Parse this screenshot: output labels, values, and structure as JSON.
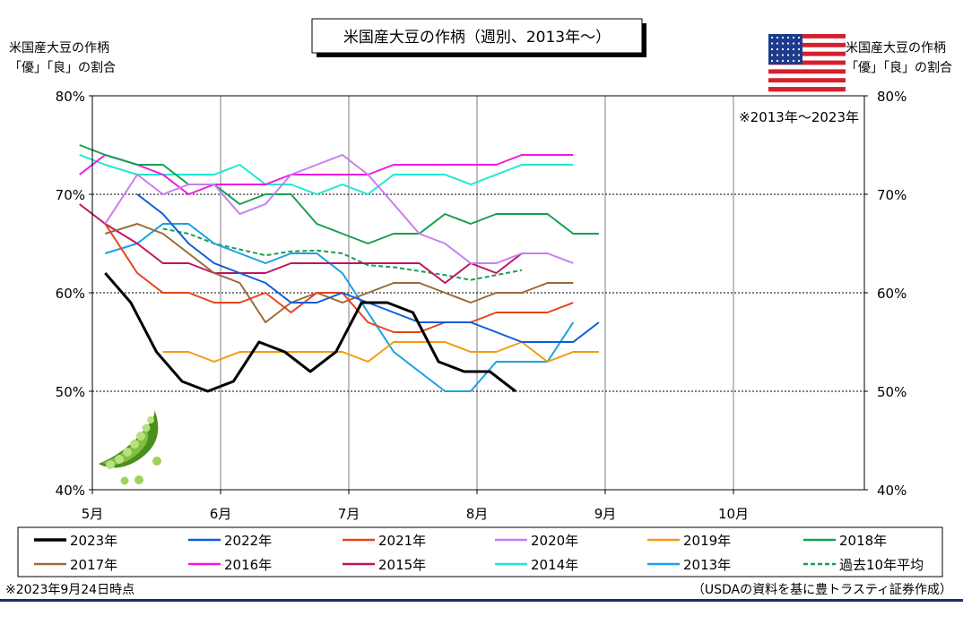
{
  "chart_data": {
    "type": "line",
    "title": "米国産大豆の作柄（週別、2013年～）",
    "ylabel_left": [
      "米国産大豆の作柄",
      "「優」「良」の割合"
    ],
    "ylabel_right": [
      "米国産大豆の作柄",
      "「優」「良」の割合"
    ],
    "range_note": "※2013年～2023年",
    "footnote": "※2023年9月24日時点",
    "source": "（USDAの資料を基に豊トラスティ証券作成）",
    "ylim": [
      40,
      80
    ],
    "y_ticks": [
      40,
      50,
      60,
      70,
      80
    ],
    "y_tick_labels": [
      "40%",
      "50%",
      "60%",
      "70%",
      "80%"
    ],
    "xlim": [
      0,
      6.29
    ],
    "x_ticks": [
      0,
      1,
      2,
      3,
      4,
      5
    ],
    "x_tick_labels": [
      "5月",
      "6月",
      "7月",
      "8月",
      "9月",
      "10月"
    ],
    "grid": true,
    "legend_position": "bottom",
    "series": [
      {
        "name": "2023年",
        "color": "#000000",
        "width": 3,
        "dash": false,
        "x": [
          0.1,
          0.3,
          0.5,
          0.7,
          0.9,
          1.1,
          1.3,
          1.5,
          1.7,
          1.9,
          2.1,
          2.3,
          2.5,
          2.7,
          2.9,
          3.1,
          3.3,
          3.5,
          3.7,
          3.9
        ],
        "values": [
          62,
          59,
          54,
          51,
          50,
          51,
          55,
          54,
          52,
          54,
          59,
          59,
          58,
          53,
          52,
          52,
          50,
          null,
          null,
          null
        ]
      },
      {
        "name": "2022年",
        "color": "#0b5ed7",
        "width": 2,
        "dash": false,
        "x": [
          0.35,
          0.55,
          0.75,
          0.95,
          1.15,
          1.35,
          1.55,
          1.75,
          1.95,
          2.15,
          2.35,
          2.55,
          2.75,
          2.95,
          3.15,
          3.35,
          3.55,
          3.75,
          3.95
        ],
        "values": [
          70,
          68,
          65,
          63,
          62,
          61,
          59,
          59,
          60,
          59,
          58,
          57,
          57,
          57,
          56,
          55,
          55,
          55,
          57
        ]
      },
      {
        "name": "2021年",
        "color": "#e8431a",
        "width": 2,
        "dash": false,
        "x": [
          0.1,
          0.35,
          0.55,
          0.75,
          0.95,
          1.15,
          1.35,
          1.55,
          1.75,
          1.95,
          2.15,
          2.35,
          2.55,
          2.75,
          2.95,
          3.15,
          3.35,
          3.55,
          3.75,
          3.95
        ],
        "values": [
          67,
          62,
          60,
          60,
          59,
          59,
          60,
          58,
          60,
          60,
          57,
          56,
          56,
          57,
          57,
          58,
          58,
          58,
          59,
          null
        ]
      },
      {
        "name": "2020年",
        "color": "#c77ef0",
        "width": 2,
        "dash": false,
        "x": [
          0.1,
          0.35,
          0.55,
          0.75,
          0.95,
          1.15,
          1.35,
          1.55,
          1.75,
          1.95,
          2.15,
          2.35,
          2.55,
          2.75,
          2.95,
          3.15,
          3.35,
          3.55,
          3.75
        ],
        "values": [
          67,
          72,
          70,
          71,
          71,
          68,
          69,
          72,
          73,
          74,
          72,
          69,
          66,
          65,
          63,
          63,
          64,
          64,
          63
        ]
      },
      {
        "name": "2019年",
        "color": "#f59a0c",
        "width": 2,
        "dash": false,
        "x": [
          0.55,
          0.75,
          0.95,
          1.15,
          1.35,
          1.55,
          1.75,
          1.95,
          2.15,
          2.35,
          2.55,
          2.75,
          2.95,
          3.15,
          3.35,
          3.55,
          3.75,
          3.95
        ],
        "values": [
          54,
          54,
          53,
          54,
          54,
          54,
          54,
          54,
          53,
          55,
          55,
          55,
          54,
          54,
          55,
          53,
          54,
          54
        ]
      },
      {
        "name": "2018年",
        "color": "#17a050",
        "width": 2,
        "dash": false,
        "x": [
          -0.1,
          0.1,
          0.35,
          0.55,
          0.75,
          0.95,
          1.15,
          1.35,
          1.55,
          1.75,
          1.95,
          2.15,
          2.35,
          2.55,
          2.75,
          2.95,
          3.15,
          3.35,
          3.55,
          3.75,
          3.95
        ],
        "values": [
          75,
          74,
          73,
          73,
          71,
          71,
          69,
          70,
          70,
          67,
          66,
          65,
          66,
          66,
          68,
          67,
          68,
          68,
          68,
          66,
          66
        ]
      },
      {
        "name": "2017年",
        "color": "#9a6a3a",
        "width": 2,
        "dash": false,
        "x": [
          0.1,
          0.35,
          0.55,
          0.75,
          0.95,
          1.15,
          1.35,
          1.55,
          1.75,
          1.95,
          2.15,
          2.35,
          2.55,
          2.75,
          2.95,
          3.15,
          3.35,
          3.55,
          3.75
        ],
        "values": [
          66,
          67,
          66,
          64,
          62,
          61,
          57,
          59,
          60,
          59,
          60,
          61,
          61,
          60,
          59,
          60,
          60,
          61,
          61
        ]
      },
      {
        "name": "2016年",
        "color": "#f018e0",
        "width": 2,
        "dash": false,
        "x": [
          -0.1,
          0.1,
          0.35,
          0.55,
          0.75,
          0.95,
          1.15,
          1.35,
          1.55,
          1.75,
          1.95,
          2.15,
          2.35,
          2.55,
          2.75,
          2.95,
          3.15,
          3.35,
          3.55,
          3.75
        ],
        "values": [
          72,
          74,
          73,
          72,
          70,
          71,
          71,
          71,
          72,
          72,
          72,
          72,
          73,
          73,
          73,
          73,
          73,
          74,
          74,
          74
        ]
      },
      {
        "name": "2015年",
        "color": "#c0135f",
        "width": 2,
        "dash": false,
        "x": [
          -0.1,
          0.1,
          0.35,
          0.55,
          0.75,
          0.95,
          1.15,
          1.35,
          1.55,
          1.75,
          1.95,
          2.15,
          2.35,
          2.55,
          2.75,
          2.95,
          3.15,
          3.35,
          3.55
        ],
        "values": [
          69,
          67,
          65,
          63,
          63,
          62,
          62,
          62,
          63,
          63,
          63,
          63,
          63,
          63,
          61,
          63,
          62,
          64,
          64
        ]
      },
      {
        "name": "2014年",
        "color": "#1ee8d2",
        "width": 2,
        "dash": false,
        "x": [
          -0.1,
          0.1,
          0.35,
          0.55,
          0.75,
          0.95,
          1.15,
          1.35,
          1.55,
          1.75,
          1.95,
          2.15,
          2.35,
          2.55,
          2.75,
          2.95,
          3.15,
          3.35,
          3.55,
          3.75
        ],
        "values": [
          74,
          73,
          72,
          72,
          72,
          72,
          73,
          71,
          71,
          70,
          71,
          70,
          72,
          72,
          72,
          71,
          72,
          73,
          73,
          73
        ]
      },
      {
        "name": "2013年",
        "color": "#1aa0e6",
        "width": 2,
        "dash": false,
        "x": [
          0.1,
          0.35,
          0.55,
          0.75,
          0.95,
          1.15,
          1.35,
          1.55,
          1.75,
          1.95,
          2.15,
          2.35,
          2.55,
          2.75,
          2.95,
          3.15,
          3.35,
          3.55,
          3.75
        ],
        "values": [
          64,
          65,
          67,
          67,
          65,
          64,
          63,
          64,
          64,
          62,
          58,
          54,
          52,
          50,
          50,
          53,
          53,
          53,
          57
        ]
      },
      {
        "name": "過去10年平均",
        "color": "#17a050",
        "width": 2,
        "dash": true,
        "x": [
          0.55,
          0.75,
          0.95,
          1.15,
          1.35,
          1.55,
          1.75,
          1.95,
          2.15,
          2.35,
          2.55,
          2.75,
          2.95,
          3.15,
          3.35
        ],
        "values": [
          66.5,
          66,
          65,
          64.4,
          63.8,
          64.2,
          64.3,
          64,
          62.8,
          62.6,
          62.2,
          61.8,
          61.3,
          61.8,
          62.3
        ]
      }
    ]
  }
}
